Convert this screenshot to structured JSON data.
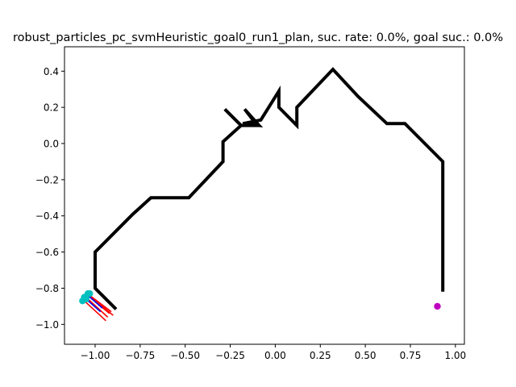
{
  "chart_data": {
    "type": "line",
    "title": "robust_particles_pc_svmHeuristic_goal0_run1_plan, suc. rate: 0.0%, goal suc.: 0.0%",
    "xlim": [
      -1.17,
      1.05
    ],
    "ylim": [
      -1.11,
      0.535
    ],
    "x_ticks": [
      -1.0,
      -0.75,
      -0.5,
      -0.25,
      0.0,
      0.25,
      0.5,
      0.75,
      1.0
    ],
    "x_tick_labels": [
      "−1.00",
      "−0.75",
      "−0.50",
      "−0.25",
      "0.00",
      "0.25",
      "0.50",
      "0.75",
      "1.00"
    ],
    "y_ticks": [
      0.4,
      0.2,
      0.0,
      -0.2,
      -0.4,
      -0.6,
      -0.8,
      -1.0
    ],
    "y_tick_labels": [
      "0.4",
      "0.2",
      "0.0",
      "−0.2",
      "−0.4",
      "−0.6",
      "−0.8",
      "−1.0"
    ],
    "grid": false,
    "colors": {
      "path": "#000000",
      "goal": "#bf00bf",
      "particles": "#00bfbf",
      "arrow_red": "#ff0000",
      "arrow_blue": "#0000ff"
    },
    "path": {
      "x": [
        -0.89,
        -1.0,
        -1.0,
        -0.9,
        -0.79,
        -0.69,
        -0.48,
        -0.29,
        -0.29,
        -0.19,
        -0.28,
        -0.19,
        -0.1,
        -0.17,
        -0.09,
        -0.18,
        -0.08,
        0.02,
        0.02,
        0.12,
        0.12,
        0.32,
        0.46,
        0.62,
        0.72,
        0.93,
        0.93
      ],
      "y": [
        -0.91,
        -0.8,
        -0.6,
        -0.5,
        -0.39,
        -0.3,
        -0.3,
        -0.1,
        0.01,
        0.1,
        0.19,
        0.1,
        0.1,
        0.19,
        0.1,
        0.11,
        0.13,
        0.29,
        0.2,
        0.1,
        0.2,
        0.41,
        0.26,
        0.11,
        0.11,
        -0.1,
        -0.81
      ]
    },
    "goal": {
      "x": 0.9,
      "y": -0.9
    },
    "particles": {
      "x": [
        -1.06,
        -1.04,
        -1.03,
        -1.05,
        -1.07
      ],
      "y": [
        -0.85,
        -0.83,
        -0.83,
        -0.86,
        -0.87
      ]
    },
    "arrows_red": [
      {
        "x1": -1.05,
        "y1": -0.85,
        "x2": -0.93,
        "y2": -0.96
      },
      {
        "x1": -1.04,
        "y1": -0.84,
        "x2": -0.92,
        "y2": -0.94
      },
      {
        "x1": -1.03,
        "y1": -0.84,
        "x2": -0.91,
        "y2": -0.93
      },
      {
        "x1": -1.06,
        "y1": -0.87,
        "x2": -0.94,
        "y2": -0.98
      },
      {
        "x1": -1.02,
        "y1": -0.85,
        "x2": -0.9,
        "y2": -0.95
      }
    ],
    "arrows_blue": [
      {
        "x1": -1.05,
        "y1": -0.86,
        "x2": -0.97,
        "y2": -0.93
      },
      {
        "x1": -1.04,
        "y1": -0.84,
        "x2": -0.96,
        "y2": -0.91
      }
    ]
  }
}
